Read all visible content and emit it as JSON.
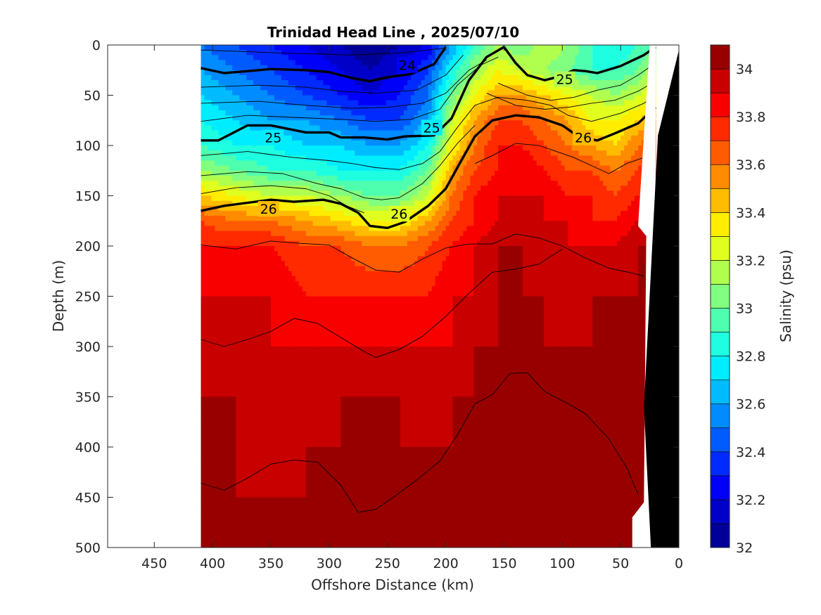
{
  "chart_data": {
    "type": "heatmap",
    "title": "Trinidad Head Line , 2025/07/10",
    "xlabel": "Offshore Distance (km)",
    "ylabel": "Depth (m)",
    "xlim": [
      490,
      0
    ],
    "ylim": [
      0,
      500
    ],
    "x_reversed": true,
    "y_reversed": true,
    "x_ticks": [
      "450",
      "400",
      "350",
      "300",
      "250",
      "200",
      "150",
      "100",
      "50",
      "0"
    ],
    "y_ticks": [
      "0",
      "50",
      "100",
      "150",
      "200",
      "250",
      "300",
      "350",
      "400",
      "450",
      "500"
    ],
    "colorbar": {
      "label": "Salinity (psu)",
      "min": 32,
      "max": 34.1,
      "step": 0.1,
      "tick_labels": [
        "32",
        "32.2",
        "32.4",
        "32.6",
        "32.8",
        "33",
        "33.2",
        "33.4",
        "33.6",
        "33.8",
        "34"
      ]
    },
    "data_extent_km": [
      410,
      20
    ],
    "salinity_field": {
      "distance_km": [
        410,
        380,
        350,
        320,
        290,
        265,
        240,
        215,
        195,
        175,
        155,
        135,
        115,
        95,
        75,
        55,
        35,
        20
      ],
      "depth_m": [
        0,
        25,
        50,
        75,
        100,
        125,
        150,
        175,
        200,
        250,
        300,
        350,
        400,
        450,
        500
      ],
      "values": [
        [
          32.5,
          32.4,
          32.3,
          32.2,
          32.1,
          32.0,
          32.1,
          32.2,
          32.6,
          32.9,
          33.1,
          33.0,
          33.2,
          33.1,
          32.9,
          32.8,
          32.9,
          33.0
        ],
        [
          32.6,
          32.5,
          32.4,
          32.3,
          32.2,
          32.1,
          32.2,
          32.4,
          32.8,
          33.1,
          33.3,
          33.2,
          33.1,
          33.0,
          32.9,
          32.9,
          33.0,
          33.2
        ],
        [
          32.7,
          32.6,
          32.5,
          32.4,
          32.3,
          32.2,
          32.3,
          32.5,
          33.0,
          33.3,
          33.5,
          33.5,
          33.4,
          33.3,
          33.2,
          33.1,
          33.2,
          33.3
        ],
        [
          32.8,
          32.7,
          32.6,
          32.6,
          32.5,
          32.4,
          32.4,
          32.6,
          33.2,
          33.5,
          33.7,
          33.7,
          33.6,
          33.5,
          33.3,
          33.3,
          33.4,
          33.5
        ],
        [
          32.9,
          32.8,
          32.8,
          32.7,
          32.7,
          32.6,
          32.6,
          32.8,
          33.3,
          33.6,
          33.8,
          33.8,
          33.7,
          33.6,
          33.5,
          33.4,
          33.6,
          33.7
        ],
        [
          33.1,
          33.0,
          32.9,
          32.9,
          32.8,
          32.8,
          32.8,
          33.0,
          33.5,
          33.7,
          33.8,
          33.9,
          33.8,
          33.7,
          33.7,
          33.6,
          33.7,
          33.8
        ],
        [
          33.4,
          33.3,
          33.2,
          33.2,
          33.1,
          33.0,
          33.0,
          33.2,
          33.6,
          33.8,
          33.9,
          33.9,
          33.9,
          33.8,
          33.8,
          33.7,
          33.8,
          33.8
        ],
        [
          33.7,
          33.6,
          33.6,
          33.5,
          33.4,
          33.3,
          33.3,
          33.5,
          33.7,
          33.8,
          33.9,
          33.9,
          33.9,
          33.9,
          33.8,
          33.8,
          33.9,
          33.9
        ],
        [
          33.8,
          33.8,
          33.8,
          33.7,
          33.7,
          33.6,
          33.6,
          33.7,
          33.8,
          33.9,
          34.0,
          34.0,
          33.9,
          33.9,
          33.9,
          33.9,
          34.0,
          34.0
        ],
        [
          33.9,
          33.9,
          33.9,
          33.8,
          33.8,
          33.8,
          33.8,
          33.8,
          33.9,
          33.9,
          34.0,
          34.0,
          34.0,
          33.9,
          34.0,
          34.0,
          34.0,
          34.0
        ],
        [
          33.9,
          34.0,
          33.9,
          33.9,
          33.9,
          33.9,
          33.9,
          33.9,
          33.9,
          34.0,
          34.0,
          34.0,
          34.0,
          34.0,
          34.0,
          34.0,
          34.0,
          34.0
        ],
        [
          34.0,
          34.0,
          34.0,
          33.9,
          34.0,
          34.0,
          34.0,
          33.9,
          34.0,
          34.0,
          34.0,
          34.1,
          34.0,
          34.0,
          34.0,
          34.0,
          34.0,
          34.0
        ],
        [
          34.0,
          34.0,
          33.9,
          34.0,
          34.0,
          34.0,
          34.0,
          34.0,
          34.0,
          34.0,
          34.1,
          34.1,
          34.1,
          34.0,
          34.0,
          34.0,
          34.0,
          34.0
        ],
        [
          34.0,
          34.0,
          34.0,
          34.0,
          34.0,
          34.0,
          34.0,
          34.0,
          34.0,
          34.1,
          34.1,
          34.1,
          34.1,
          34.1,
          34.0,
          34.0,
          34.0,
          34.0
        ],
        [
          34.1,
          34.0,
          34.0,
          34.0,
          34.1,
          34.0,
          34.1,
          34.0,
          34.1,
          34.1,
          34.1,
          34.1,
          34.1,
          34.1,
          34.1,
          34.1,
          34.1,
          34.1
        ]
      ]
    },
    "density_contours": [
      {
        "label": "24",
        "bold": true,
        "points": [
          [
            410,
            23
          ],
          [
            390,
            28
          ],
          [
            370,
            26
          ],
          [
            350,
            24
          ],
          [
            320,
            25
          ],
          [
            300,
            27
          ],
          [
            280,
            33
          ],
          [
            265,
            36
          ],
          [
            250,
            32
          ],
          [
            230,
            29
          ],
          [
            210,
            19
          ],
          [
            200,
            2
          ]
        ],
        "label_at": [
          233,
          20
        ]
      },
      {
        "label": "25",
        "bold": true,
        "points": [
          [
            410,
            95
          ],
          [
            395,
            95
          ],
          [
            370,
            80
          ],
          [
            350,
            80
          ],
          [
            320,
            87
          ],
          [
            300,
            87
          ],
          [
            290,
            92
          ],
          [
            270,
            92
          ],
          [
            250,
            94
          ],
          [
            235,
            91
          ],
          [
            210,
            90
          ],
          [
            195,
            73
          ],
          [
            180,
            35
          ],
          [
            165,
            12
          ],
          [
            150,
            2
          ],
          [
            140,
            18
          ],
          [
            130,
            30
          ],
          [
            115,
            35
          ],
          [
            105,
            32
          ],
          [
            90,
            25
          ],
          [
            80,
            26
          ],
          [
            70,
            28
          ],
          [
            50,
            21
          ],
          [
            30,
            10
          ],
          [
            20,
            2
          ]
        ],
        "label_at": [
          [
            348,
            92
          ],
          [
            212,
            82
          ],
          [
            98,
            34
          ]
        ]
      },
      {
        "label": "26",
        "bold": true,
        "points": [
          [
            410,
            165
          ],
          [
            390,
            160
          ],
          [
            370,
            157
          ],
          [
            350,
            154
          ],
          [
            330,
            156
          ],
          [
            305,
            154
          ],
          [
            290,
            158
          ],
          [
            275,
            167
          ],
          [
            265,
            180
          ],
          [
            250,
            182
          ],
          [
            235,
            176
          ],
          [
            215,
            160
          ],
          [
            200,
            143
          ],
          [
            190,
            122
          ],
          [
            175,
            91
          ],
          [
            160,
            75
          ],
          [
            140,
            70
          ],
          [
            120,
            72
          ],
          [
            100,
            80
          ],
          [
            85,
            92
          ],
          [
            70,
            95
          ],
          [
            55,
            88
          ],
          [
            35,
            78
          ],
          [
            20,
            62
          ]
        ],
        "label_at": [
          [
            352,
            163
          ],
          [
            240,
            168
          ],
          [
            82,
            92
          ]
        ]
      }
    ],
    "thin_contours": [
      [
        [
          410,
          5
        ],
        [
          340,
          8
        ],
        [
          280,
          10
        ],
        [
          240,
          8
        ],
        [
          200,
          3
        ]
      ],
      [
        [
          410,
          42
        ],
        [
          360,
          40
        ],
        [
          320,
          42
        ],
        [
          290,
          46
        ],
        [
          260,
          48
        ],
        [
          225,
          45
        ],
        [
          200,
          30
        ],
        [
          185,
          10
        ]
      ],
      [
        [
          410,
          58
        ],
        [
          360,
          56
        ],
        [
          320,
          60
        ],
        [
          280,
          63
        ],
        [
          250,
          62
        ],
        [
          220,
          58
        ],
        [
          200,
          48
        ],
        [
          180,
          25
        ],
        [
          165,
          15
        ]
      ],
      [
        [
          410,
          76
        ],
        [
          370,
          70
        ],
        [
          330,
          72
        ],
        [
          290,
          74
        ],
        [
          260,
          76
        ],
        [
          230,
          74
        ],
        [
          205,
          64
        ],
        [
          190,
          40
        ],
        [
          170,
          20
        ],
        [
          155,
          12
        ]
      ],
      [
        [
          155,
          38
        ],
        [
          130,
          50
        ],
        [
          110,
          55
        ],
        [
          90,
          52
        ],
        [
          70,
          45
        ],
        [
          50,
          40
        ],
        [
          35,
          30
        ],
        [
          20,
          18
        ]
      ],
      [
        [
          165,
          48
        ],
        [
          140,
          60
        ],
        [
          115,
          64
        ],
        [
          95,
          62
        ],
        [
          75,
          58
        ],
        [
          55,
          55
        ],
        [
          35,
          46
        ],
        [
          20,
          36
        ]
      ],
      [
        [
          410,
          110
        ],
        [
          370,
          106
        ],
        [
          330,
          112
        ],
        [
          300,
          115
        ],
        [
          280,
          118
        ],
        [
          260,
          122
        ],
        [
          240,
          124
        ],
        [
          220,
          118
        ],
        [
          205,
          106
        ],
        [
          190,
          82
        ],
        [
          175,
          60
        ],
        [
          155,
          52
        ],
        [
          130,
          55
        ],
        [
          110,
          60
        ],
        [
          95,
          70
        ],
        [
          75,
          76
        ],
        [
          50,
          68
        ],
        [
          30,
          58
        ],
        [
          20,
          50
        ]
      ],
      [
        [
          410,
          130
        ],
        [
          370,
          126
        ],
        [
          340,
          128
        ],
        [
          310,
          138
        ],
        [
          290,
          143
        ],
        [
          270,
          152
        ],
        [
          255,
          154
        ],
        [
          240,
          152
        ],
        [
          220,
          138
        ],
        [
          205,
          120
        ],
        [
          190,
          98
        ],
        [
          175,
          80
        ]
      ],
      [
        [
          410,
          148
        ],
        [
          380,
          142
        ],
        [
          350,
          140
        ],
        [
          320,
          143
        ],
        [
          300,
          150
        ],
        [
          285,
          160
        ],
        [
          270,
          167
        ]
      ],
      [
        [
          175,
          118
        ],
        [
          160,
          110
        ],
        [
          140,
          98
        ],
        [
          120,
          100
        ],
        [
          105,
          106
        ],
        [
          90,
          112
        ],
        [
          75,
          120
        ],
        [
          60,
          128
        ],
        [
          45,
          118
        ],
        [
          30,
          112
        ],
        [
          20,
          114
        ]
      ],
      [
        [
          410,
          199
        ],
        [
          380,
          203
        ],
        [
          350,
          195
        ],
        [
          330,
          197
        ],
        [
          300,
          199
        ],
        [
          280,
          212
        ],
        [
          260,
          224
        ],
        [
          240,
          226
        ],
        [
          220,
          213
        ],
        [
          200,
          202
        ],
        [
          180,
          198
        ],
        [
          160,
          198
        ],
        [
          140,
          188
        ],
        [
          120,
          192
        ],
        [
          100,
          200
        ],
        [
          80,
          212
        ],
        [
          60,
          222
        ],
        [
          40,
          227
        ],
        [
          30,
          230
        ]
      ],
      [
        [
          410,
          293
        ],
        [
          390,
          300
        ],
        [
          370,
          293
        ],
        [
          350,
          285
        ],
        [
          330,
          272
        ],
        [
          310,
          277
        ],
        [
          290,
          291
        ],
        [
          270,
          305
        ],
        [
          260,
          311
        ],
        [
          240,
          303
        ],
        [
          220,
          290
        ],
        [
          200,
          270
        ],
        [
          180,
          247
        ],
        [
          160,
          226
        ],
        [
          140,
          223
        ],
        [
          120,
          218
        ],
        [
          100,
          203
        ]
      ],
      [
        [
          410,
          436
        ],
        [
          390,
          443
        ],
        [
          370,
          431
        ],
        [
          350,
          417
        ],
        [
          330,
          413
        ],
        [
          310,
          415
        ],
        [
          290,
          438
        ],
        [
          275,
          465
        ],
        [
          260,
          462
        ],
        [
          245,
          450
        ],
        [
          225,
          433
        ],
        [
          205,
          414
        ],
        [
          190,
          388
        ],
        [
          175,
          357
        ],
        [
          160,
          348
        ],
        [
          145,
          327
        ],
        [
          130,
          326
        ],
        [
          115,
          345
        ],
        [
          95,
          357
        ],
        [
          80,
          367
        ],
        [
          60,
          392
        ],
        [
          45,
          420
        ],
        [
          35,
          447
        ]
      ]
    ],
    "bathymetry_km_depth": [
      [
        35,
        500
      ],
      [
        35,
        470
      ],
      [
        40,
        455
      ],
      [
        28,
        190
      ],
      [
        35,
        180
      ],
      [
        22,
        0
      ],
      [
        0,
        0
      ],
      [
        0,
        500
      ]
    ]
  }
}
